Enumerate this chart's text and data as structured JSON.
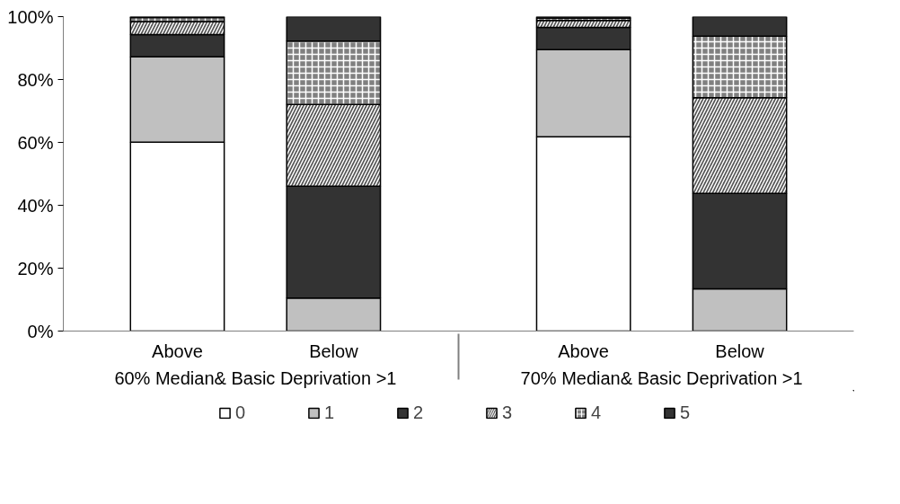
{
  "chart_data": {
    "type": "bar",
    "stacked": true,
    "categories": [
      "Above",
      "Below",
      "Above",
      "Below"
    ],
    "annotations": [
      "60% Median& Basic Deprivation >1",
      "70% Median& Basic Deprivation >1"
    ],
    "ylim": [
      0,
      100
    ],
    "yticks": [
      {
        "value": 0,
        "label": "0%"
      },
      {
        "value": 20,
        "label": "20%"
      },
      {
        "value": 40,
        "label": "40%"
      },
      {
        "value": 60,
        "label": "60%"
      },
      {
        "value": 80,
        "label": "80%"
      },
      {
        "value": 100,
        "label": "100%"
      }
    ],
    "grid": false,
    "legend": "bottom",
    "series": [
      {
        "name": "0",
        "color": "#ffffff",
        "values": [
          60.1,
          0,
          61.8,
          0
        ]
      },
      {
        "name": "1",
        "color": "#c0c0c0",
        "values": [
          27.1,
          10.5,
          27.7,
          13.4
        ]
      },
      {
        "name": "2",
        "color": "#333333",
        "values": [
          7.1,
          35.6,
          7.1,
          30.4
        ]
      },
      {
        "name": "3",
        "color": "#555555",
        "values": [
          4.1,
          26.0,
          2.2,
          30.4
        ]
      },
      {
        "name": "4",
        "color": "#808080",
        "values": [
          1.3,
          20.1,
          0.7,
          19.6
        ]
      },
      {
        "name": "5",
        "color": "#333333",
        "values": [
          0.3,
          7.8,
          0.5,
          6.2
        ]
      }
    ]
  }
}
